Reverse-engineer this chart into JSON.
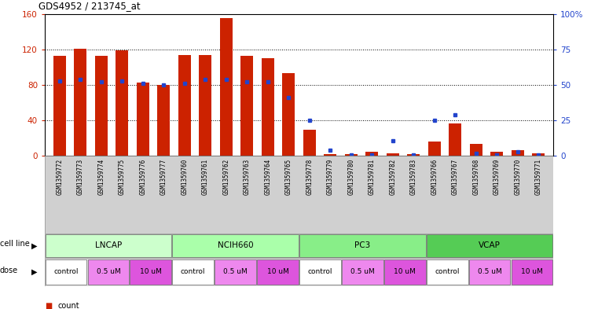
{
  "title": "GDS4952 / 213745_at",
  "samples": [
    "GSM1359772",
    "GSM1359773",
    "GSM1359774",
    "GSM1359775",
    "GSM1359776",
    "GSM1359777",
    "GSM1359760",
    "GSM1359761",
    "GSM1359762",
    "GSM1359763",
    "GSM1359764",
    "GSM1359765",
    "GSM1359778",
    "GSM1359779",
    "GSM1359780",
    "GSM1359781",
    "GSM1359782",
    "GSM1359783",
    "GSM1359766",
    "GSM1359767",
    "GSM1359768",
    "GSM1359769",
    "GSM1359770",
    "GSM1359771"
  ],
  "counts": [
    113,
    121,
    113,
    119,
    83,
    80,
    114,
    114,
    155,
    113,
    110,
    93,
    30,
    2,
    2,
    5,
    3,
    2,
    16,
    37,
    14,
    5,
    7,
    3
  ],
  "percentile_ranks": [
    53,
    54,
    52,
    53,
    51,
    50,
    51,
    54,
    54,
    52,
    52,
    41,
    25,
    4,
    1,
    1,
    11,
    1,
    25,
    29,
    2,
    1,
    3,
    1
  ],
  "cell_line_data": [
    {
      "name": "LNCAP",
      "start": 0,
      "end": 6,
      "color": "#ccffcc"
    },
    {
      "name": "NCIH660",
      "start": 6,
      "end": 12,
      "color": "#99ee99"
    },
    {
      "name": "PC3",
      "start": 12,
      "end": 18,
      "color": "#88dd88"
    },
    {
      "name": "VCAP",
      "start": 18,
      "end": 24,
      "color": "#55cc55"
    }
  ],
  "dose_segments": [
    {
      "label": "control",
      "start": 0,
      "end": 2,
      "color": "#ffffff"
    },
    {
      "label": "0.5 uM",
      "start": 2,
      "end": 4,
      "color": "#ee88ee"
    },
    {
      "label": "10 uM",
      "start": 4,
      "end": 6,
      "color": "#dd55dd"
    },
    {
      "label": "control",
      "start": 6,
      "end": 8,
      "color": "#ffffff"
    },
    {
      "label": "0.5 uM",
      "start": 8,
      "end": 10,
      "color": "#ee88ee"
    },
    {
      "label": "10 uM",
      "start": 10,
      "end": 12,
      "color": "#dd55dd"
    },
    {
      "label": "control",
      "start": 12,
      "end": 14,
      "color": "#ffffff"
    },
    {
      "label": "0.5 uM",
      "start": 14,
      "end": 16,
      "color": "#ee88ee"
    },
    {
      "label": "10 uM",
      "start": 16,
      "end": 18,
      "color": "#dd55dd"
    },
    {
      "label": "control",
      "start": 18,
      "end": 20,
      "color": "#ffffff"
    },
    {
      "label": "0.5 uM",
      "start": 20,
      "end": 22,
      "color": "#ee88ee"
    },
    {
      "label": "10 uM",
      "start": 22,
      "end": 24,
      "color": "#dd55dd"
    }
  ],
  "bar_color": "#cc2200",
  "dot_color": "#2244cc",
  "ylim_left": [
    0,
    160
  ],
  "ylim_right": [
    0,
    100
  ],
  "yticks_left": [
    0,
    40,
    80,
    120,
    160
  ],
  "ytick_labels_right": [
    "0",
    "25",
    "50",
    "75",
    "100%"
  ],
  "gridlines": [
    40,
    80,
    120
  ],
  "xlab_bg": "#d0d0d0",
  "cl_row_bg": "#e8e8e8"
}
